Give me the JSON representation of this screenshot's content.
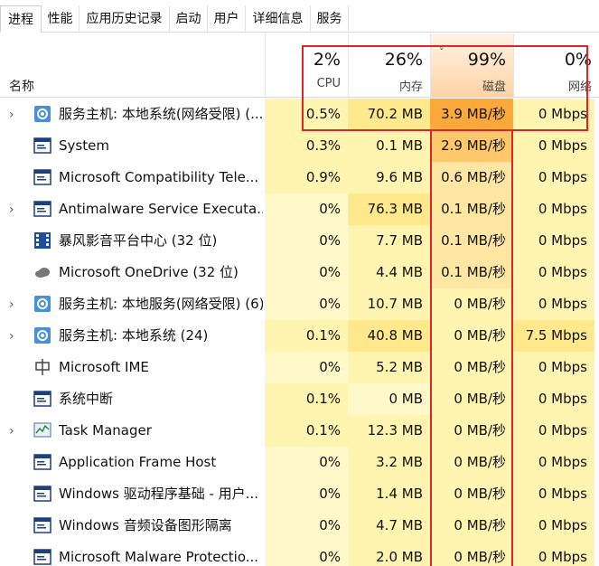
{
  "tabs": [
    "进程",
    "性能",
    "应用历史记录",
    "启动",
    "用户",
    "详细信息",
    "服务"
  ],
  "header": {
    "name": "名称",
    "cpu": {
      "pct": "2%",
      "label": "CPU"
    },
    "mem": {
      "pct": "26%",
      "label": "内存"
    },
    "disk": {
      "pct": "99%",
      "label": "磁盘"
    },
    "net": {
      "pct": "0%",
      "label": "网络"
    },
    "sort_chevron": "˅"
  },
  "colors": {
    "annotation_red": "#d8262a",
    "heat_orange": "#fca93c",
    "heat_yellow": "#fff4b0"
  },
  "rows": [
    {
      "expand": "›",
      "icon": "gear-icon",
      "name": "服务主机: 本地系统(网络受限) (...",
      "cpu": "0.5%",
      "mem": "70.2 MB",
      "disk": "3.9 MB/秒",
      "net": "0 Mbps"
    },
    {
      "expand": "",
      "icon": "window-icon",
      "name": "System",
      "cpu": "0.3%",
      "mem": "0.1 MB",
      "disk": "2.9 MB/秒",
      "net": "0 Mbps"
    },
    {
      "expand": "",
      "icon": "window-icon",
      "name": "Microsoft Compatibility Tele...",
      "cpu": "0.9%",
      "mem": "9.6 MB",
      "disk": "0.6 MB/秒",
      "net": "0 Mbps"
    },
    {
      "expand": "›",
      "icon": "window-icon",
      "name": "Antimalware Service Executa...",
      "cpu": "0%",
      "mem": "76.3 MB",
      "disk": "0.1 MB/秒",
      "net": "0 Mbps"
    },
    {
      "expand": "",
      "icon": "film-icon",
      "name": "暴风影音平台中心 (32 位)",
      "cpu": "0%",
      "mem": "7.7 MB",
      "disk": "0.1 MB/秒",
      "net": "0 Mbps"
    },
    {
      "expand": "",
      "icon": "cloud-icon",
      "name": "Microsoft OneDrive (32 位)",
      "cpu": "0%",
      "mem": "4.4 MB",
      "disk": "0.1 MB/秒",
      "net": "0 Mbps"
    },
    {
      "expand": "›",
      "icon": "gear-icon",
      "name": "服务主机: 本地服务(网络受限) (6)",
      "cpu": "0%",
      "mem": "10.7 MB",
      "disk": "0 MB/秒",
      "net": "0 Mbps"
    },
    {
      "expand": "›",
      "icon": "gear-icon",
      "name": "服务主机: 本地系统 (24)",
      "cpu": "0.1%",
      "mem": "40.8 MB",
      "disk": "0 MB/秒",
      "net": "7.5 Mbps"
    },
    {
      "expand": "",
      "icon": "ime-icon",
      "name": "Microsoft IME",
      "cpu": "0%",
      "mem": "5.2 MB",
      "disk": "0 MB/秒",
      "net": "0 Mbps"
    },
    {
      "expand": "",
      "icon": "window-icon",
      "name": "系统中断",
      "cpu": "0.1%",
      "mem": "0 MB",
      "disk": "0 MB/秒",
      "net": "0 Mbps"
    },
    {
      "expand": "›",
      "icon": "task-manager-icon",
      "name": "Task Manager",
      "cpu": "0.1%",
      "mem": "12.3 MB",
      "disk": "0 MB/秒",
      "net": "0 Mbps"
    },
    {
      "expand": "",
      "icon": "window-icon",
      "name": "Application Frame Host",
      "cpu": "0%",
      "mem": "3.2 MB",
      "disk": "0 MB/秒",
      "net": "0 Mbps"
    },
    {
      "expand": "",
      "icon": "window-icon",
      "name": "Windows 驱动程序基础 - 用户...",
      "cpu": "0%",
      "mem": "1.4 MB",
      "disk": "0 MB/秒",
      "net": "0 Mbps"
    },
    {
      "expand": "",
      "icon": "window-icon",
      "name": "Windows 音频设备图形隔离",
      "cpu": "0%",
      "mem": "4.7 MB",
      "disk": "0 MB/秒",
      "net": "0 Mbps"
    },
    {
      "expand": "",
      "icon": "window-icon",
      "name": "Microsoft Malware Protectio...",
      "cpu": "0%",
      "mem": "2.0 MB",
      "disk": "0 MB/秒",
      "net": "0 Mbps"
    }
  ]
}
